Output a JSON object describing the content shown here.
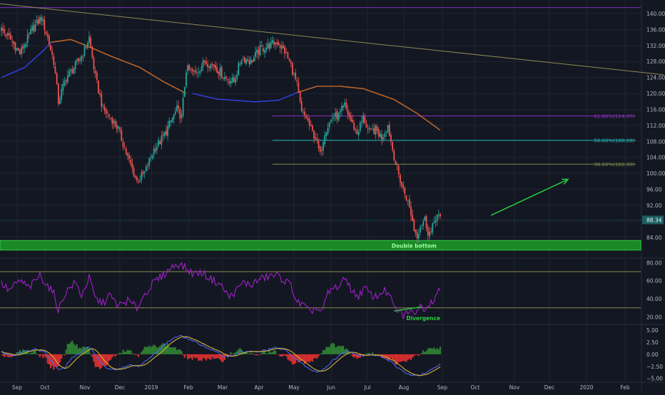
{
  "colors": {
    "background": "#131722",
    "grid": "#1f2433",
    "up": "#26a69a",
    "down": "#ef5350",
    "ma_blue": "#2f3fd6",
    "ma_orange": "#b8642a",
    "trendline": "#8d8a52",
    "top_line": "#7b2fbf",
    "support_zone": "#1e9e2a",
    "arrow": "#27c93f",
    "fib_618": "#8e2fbf",
    "fib_500": "#22b4b4",
    "fib_382": "#7f8a4a",
    "rsi_line": "#a020c8",
    "rsi_band": "#8d8a52",
    "macd_line": "#4a66e8",
    "signal_line": "#d6b23a",
    "hist_pos": "#2e7d32",
    "hist_neg": "#d32f2f",
    "axis_text": "#b2b5be",
    "price_tag": "#1d5e63"
  },
  "chart_data": [
    {
      "type": "candlestick",
      "panel": "price",
      "x_labels": [
        "Sep",
        "Oct",
        "Nov",
        "Dec",
        "2019",
        "Feb",
        "Mar",
        "Apr",
        "May",
        "Jun",
        "Jul",
        "Aug",
        "Sep",
        "Oct",
        "Nov",
        "Dec",
        "2020",
        "Feb"
      ],
      "y_ticks": [
        84.0,
        88.0,
        92.0,
        96.0,
        100.0,
        104.0,
        108.0,
        112.0,
        116.0,
        120.0,
        124.0,
        128.0,
        132.0,
        136.0,
        140.0
      ],
      "ylim": [
        79.5,
        142.5
      ],
      "last_price": 88.34,
      "last_price_label": "88.34",
      "anchors": [
        {
          "t": 0,
          "p": 136.0
        },
        {
          "t": 6,
          "p": 133.5
        },
        {
          "t": 12,
          "p": 130.0
        },
        {
          "t": 20,
          "p": 136.0
        },
        {
          "t": 26,
          "p": 139.0
        },
        {
          "t": 30,
          "p": 134.0
        },
        {
          "t": 34,
          "p": 128.0
        },
        {
          "t": 37,
          "p": 118.0
        },
        {
          "t": 42,
          "p": 124.0
        },
        {
          "t": 48,
          "p": 127.0
        },
        {
          "t": 53,
          "p": 130.0
        },
        {
          "t": 57,
          "p": 134.0
        },
        {
          "t": 61,
          "p": 124.0
        },
        {
          "t": 66,
          "p": 116.0
        },
        {
          "t": 71,
          "p": 114.0
        },
        {
          "t": 76,
          "p": 111.0
        },
        {
          "t": 82,
          "p": 104.0
        },
        {
          "t": 88,
          "p": 98.0
        },
        {
          "t": 93,
          "p": 100.0
        },
        {
          "t": 99,
          "p": 106.0
        },
        {
          "t": 105,
          "p": 109.0
        },
        {
          "t": 110,
          "p": 113.0
        },
        {
          "t": 114,
          "p": 116.0
        },
        {
          "t": 117,
          "p": 114.0
        },
        {
          "t": 120,
          "p": 126.0
        },
        {
          "t": 126,
          "p": 125.0
        },
        {
          "t": 132,
          "p": 128.0
        },
        {
          "t": 138,
          "p": 127.0
        },
        {
          "t": 145,
          "p": 124.0
        },
        {
          "t": 151,
          "p": 123.0
        },
        {
          "t": 156,
          "p": 129.0
        },
        {
          "t": 162,
          "p": 128.0
        },
        {
          "t": 168,
          "p": 131.0
        },
        {
          "t": 174,
          "p": 132.0
        },
        {
          "t": 179,
          "p": 133.0
        },
        {
          "t": 184,
          "p": 130.5
        },
        {
          "t": 188,
          "p": 127.0
        },
        {
          "t": 192,
          "p": 122.0
        },
        {
          "t": 195,
          "p": 115.0
        },
        {
          "t": 198,
          "p": 114.0
        },
        {
          "t": 201,
          "p": 111.0
        },
        {
          "t": 204,
          "p": 109.0
        },
        {
          "t": 207,
          "p": 104.5
        },
        {
          "t": 210,
          "p": 110.5
        },
        {
          "t": 215,
          "p": 114.0
        },
        {
          "t": 219,
          "p": 114.5
        },
        {
          "t": 223,
          "p": 117.0
        },
        {
          "t": 227,
          "p": 113.0
        },
        {
          "t": 231,
          "p": 110.0
        },
        {
          "t": 235,
          "p": 114.0
        },
        {
          "t": 239,
          "p": 110.0
        },
        {
          "t": 243,
          "p": 111.0
        },
        {
          "t": 247,
          "p": 109.0
        },
        {
          "t": 251,
          "p": 112.0
        },
        {
          "t": 254,
          "p": 106.0
        },
        {
          "t": 257,
          "p": 101.0
        },
        {
          "t": 260,
          "p": 97.0
        },
        {
          "t": 263,
          "p": 94.0
        },
        {
          "t": 266,
          "p": 90.0
        },
        {
          "t": 268,
          "p": 86.0
        },
        {
          "t": 270,
          "p": 84.5
        },
        {
          "t": 272,
          "p": 87.0
        },
        {
          "t": 275,
          "p": 88.5
        },
        {
          "t": 277,
          "p": 85.5
        },
        {
          "t": 279,
          "p": 85.0
        },
        {
          "t": 281,
          "p": 88.0
        },
        {
          "t": 283,
          "p": 89.5
        },
        {
          "t": 285,
          "p": 88.34
        }
      ],
      "ma200": [
        {
          "t": 0,
          "p": 124.0
        },
        {
          "t": 15,
          "p": 126.5
        },
        {
          "t": 28,
          "p": 131.0
        },
        {
          "t": 32,
          "p": 132.8
        }
      ],
      "ma200_b": [
        {
          "t": 124,
          "p": 120.0
        },
        {
          "t": 140,
          "p": 118.6
        },
        {
          "t": 165,
          "p": 117.9
        },
        {
          "t": 180,
          "p": 118.3
        },
        {
          "t": 192,
          "p": 120.2
        }
      ],
      "ma50": [
        {
          "t": 32,
          "p": 132.8
        },
        {
          "t": 45,
          "p": 133.5
        },
        {
          "t": 55,
          "p": 132.0
        },
        {
          "t": 70,
          "p": 129.5
        },
        {
          "t": 90,
          "p": 126.5
        },
        {
          "t": 105,
          "p": 123.0
        },
        {
          "t": 120,
          "p": 120.0
        }
      ],
      "ma50_b": [
        {
          "t": 192,
          "p": 120.2
        },
        {
          "t": 205,
          "p": 121.8
        },
        {
          "t": 220,
          "p": 121.8
        },
        {
          "t": 235,
          "p": 121.2
        },
        {
          "t": 255,
          "p": 118.5
        },
        {
          "t": 270,
          "p": 115.0
        },
        {
          "t": 285,
          "p": 110.8
        }
      ],
      "trendline": {
        "from": {
          "t": -2,
          "p": 142.5
        },
        "to": {
          "t": 430,
          "p": 124.7
        }
      },
      "top_line": 141.5,
      "arrow": {
        "from": {
          "t": 318,
          "p": 89.5
        },
        "to": {
          "t": 368,
          "p": 98.5
        }
      },
      "fib_levels": [
        {
          "ratio": "61.80%",
          "value": 114.37,
          "label": "61.80%(114.37)"
        },
        {
          "ratio": "50.00%",
          "value": 108.28,
          "label": "50.00%(108.28)"
        },
        {
          "ratio": "38.20%",
          "value": 102.3,
          "label": "38.20%(102.30)"
        }
      ],
      "fib_t_start": 176,
      "fib_t_end": 412,
      "support_zone": [
        80.8,
        83.2
      ],
      "support_label": "Double bottom"
    },
    {
      "type": "line",
      "panel": "rsi",
      "y_ticks": [
        20.0,
        40.0,
        60.0,
        80.0
      ],
      "ylim": [
        14,
        81
      ],
      "bands": [
        70,
        30
      ],
      "anchors": [
        {
          "t": 0,
          "p": 57
        },
        {
          "t": 5,
          "p": 49
        },
        {
          "t": 12,
          "p": 60
        },
        {
          "t": 18,
          "p": 52
        },
        {
          "t": 25,
          "p": 66
        },
        {
          "t": 30,
          "p": 55
        },
        {
          "t": 34,
          "p": 45
        },
        {
          "t": 37,
          "p": 28
        },
        {
          "t": 42,
          "p": 48
        },
        {
          "t": 48,
          "p": 58
        },
        {
          "t": 52,
          "p": 44
        },
        {
          "t": 57,
          "p": 63
        },
        {
          "t": 61,
          "p": 40
        },
        {
          "t": 66,
          "p": 35
        },
        {
          "t": 70,
          "p": 44
        },
        {
          "t": 76,
          "p": 32
        },
        {
          "t": 82,
          "p": 38
        },
        {
          "t": 88,
          "p": 30
        },
        {
          "t": 93,
          "p": 45
        },
        {
          "t": 99,
          "p": 58
        },
        {
          "t": 105,
          "p": 66
        },
        {
          "t": 110,
          "p": 74
        },
        {
          "t": 114,
          "p": 79
        },
        {
          "t": 118,
          "p": 76
        },
        {
          "t": 124,
          "p": 68
        },
        {
          "t": 130,
          "p": 69
        },
        {
          "t": 136,
          "p": 62
        },
        {
          "t": 142,
          "p": 56
        },
        {
          "t": 148,
          "p": 42
        },
        {
          "t": 152,
          "p": 48
        },
        {
          "t": 157,
          "p": 58
        },
        {
          "t": 162,
          "p": 55
        },
        {
          "t": 168,
          "p": 62
        },
        {
          "t": 174,
          "p": 65
        },
        {
          "t": 179,
          "p": 66
        },
        {
          "t": 184,
          "p": 60
        },
        {
          "t": 188,
          "p": 55
        },
        {
          "t": 192,
          "p": 36
        },
        {
          "t": 196,
          "p": 33
        },
        {
          "t": 200,
          "p": 25
        },
        {
          "t": 204,
          "p": 30
        },
        {
          "t": 208,
          "p": 24
        },
        {
          "t": 212,
          "p": 46
        },
        {
          "t": 216,
          "p": 52
        },
        {
          "t": 220,
          "p": 55
        },
        {
          "t": 224,
          "p": 63
        },
        {
          "t": 228,
          "p": 47
        },
        {
          "t": 232,
          "p": 43
        },
        {
          "t": 236,
          "p": 52
        },
        {
          "t": 240,
          "p": 44
        },
        {
          "t": 244,
          "p": 42
        },
        {
          "t": 248,
          "p": 50
        },
        {
          "t": 252,
          "p": 44
        },
        {
          "t": 255,
          "p": 30
        },
        {
          "t": 258,
          "p": 26
        },
        {
          "t": 261,
          "p": 21
        },
        {
          "t": 264,
          "p": 26
        },
        {
          "t": 267,
          "p": 24
        },
        {
          "t": 270,
          "p": 28
        },
        {
          "t": 272,
          "p": 32
        },
        {
          "t": 275,
          "p": 30
        },
        {
          "t": 278,
          "p": 35
        },
        {
          "t": 281,
          "p": 40
        },
        {
          "t": 283,
          "p": 48
        },
        {
          "t": 285,
          "p": 50
        }
      ],
      "divergence": {
        "from": {
          "t": 255,
          "p": 26.5
        },
        "to": {
          "t": 273,
          "p": 31
        },
        "label": "Divergence"
      }
    },
    {
      "type": "macd",
      "panel": "macd",
      "y_ticks": [
        -5.0,
        -2.5,
        0.0,
        2.5,
        5.0
      ],
      "y_tick_labels": [
        "−5.00",
        "−2.50",
        "0.00",
        "2.50",
        "5.00"
      ],
      "ylim": [
        -5.2,
        5.6
      ],
      "macd_anchors": [
        {
          "t": 0,
          "p": 0.4
        },
        {
          "t": 8,
          "p": -0.4
        },
        {
          "t": 15,
          "p": 0.6
        },
        {
          "t": 22,
          "p": 1.0
        },
        {
          "t": 28,
          "p": 0.6
        },
        {
          "t": 33,
          "p": -1.6
        },
        {
          "t": 37,
          "p": -3.3
        },
        {
          "t": 41,
          "p": -2.8
        },
        {
          "t": 46,
          "p": -0.6
        },
        {
          "t": 52,
          "p": 0.4
        },
        {
          "t": 57,
          "p": 1.6
        },
        {
          "t": 62,
          "p": -0.6
        },
        {
          "t": 67,
          "p": -2.6
        },
        {
          "t": 72,
          "p": -3.2
        },
        {
          "t": 77,
          "p": -2.9
        },
        {
          "t": 83,
          "p": -2.2
        },
        {
          "t": 89,
          "p": -2.4
        },
        {
          "t": 95,
          "p": -1.2
        },
        {
          "t": 101,
          "p": 0.5
        },
        {
          "t": 107,
          "p": 2.3
        },
        {
          "t": 112,
          "p": 3.4
        },
        {
          "t": 116,
          "p": 3.8
        },
        {
          "t": 120,
          "p": 3.4
        },
        {
          "t": 126,
          "p": 2.5
        },
        {
          "t": 132,
          "p": 1.6
        },
        {
          "t": 138,
          "p": 0.7
        },
        {
          "t": 144,
          "p": -0.4
        },
        {
          "t": 150,
          "p": -0.3
        },
        {
          "t": 155,
          "p": 0.4
        },
        {
          "t": 160,
          "p": 0.6
        },
        {
          "t": 166,
          "p": 0.4
        },
        {
          "t": 172,
          "p": 0.9
        },
        {
          "t": 178,
          "p": 1.3
        },
        {
          "t": 184,
          "p": 0.9
        },
        {
          "t": 190,
          "p": -0.6
        },
        {
          "t": 196,
          "p": -2.1
        },
        {
          "t": 201,
          "p": -3.3
        },
        {
          "t": 206,
          "p": -3.6
        },
        {
          "t": 210,
          "p": -2.9
        },
        {
          "t": 215,
          "p": -1.4
        },
        {
          "t": 220,
          "p": -0.1
        },
        {
          "t": 224,
          "p": 0.6
        },
        {
          "t": 228,
          "p": 0.4
        },
        {
          "t": 233,
          "p": -0.3
        },
        {
          "t": 238,
          "p": 0.0
        },
        {
          "t": 243,
          "p": -0.2
        },
        {
          "t": 248,
          "p": -0.6
        },
        {
          "t": 253,
          "p": -1.5
        },
        {
          "t": 258,
          "p": -3.0
        },
        {
          "t": 263,
          "p": -4.0
        },
        {
          "t": 268,
          "p": -4.5
        },
        {
          "t": 272,
          "p": -4.3
        },
        {
          "t": 276,
          "p": -3.9
        },
        {
          "t": 280,
          "p": -3.1
        },
        {
          "t": 283,
          "p": -2.5
        },
        {
          "t": 285,
          "p": -2.0
        }
      ],
      "signal_lag": 6
    }
  ]
}
